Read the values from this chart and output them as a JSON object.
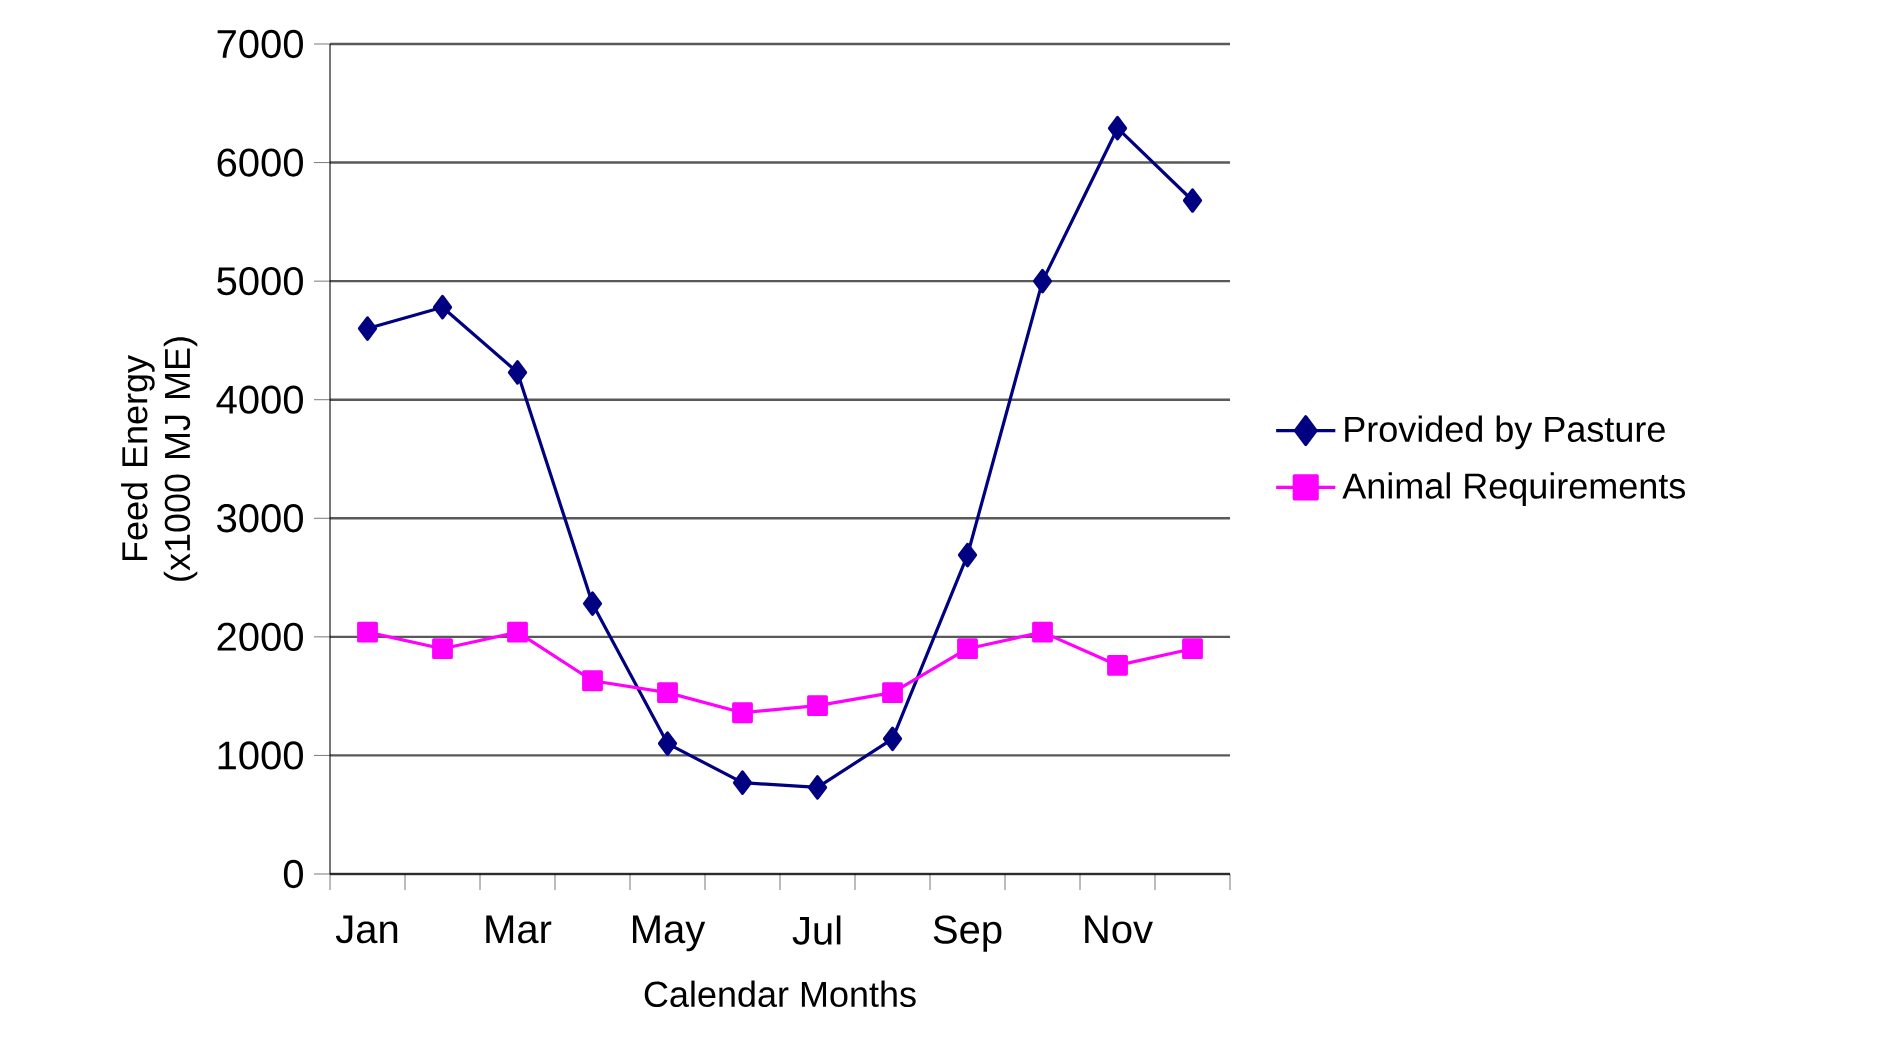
{
  "chart_data": {
    "type": "line",
    "xlabel": "Calendar Months",
    "ylabel": "Feed Energy (x1000 MJ ME)",
    "categories": [
      "Jan",
      null,
      "Mar",
      null,
      "May",
      null,
      "Jul",
      null,
      "Sep",
      null,
      "Nov",
      null
    ],
    "series": [
      {
        "name": "Provided by Pasture",
        "color": "#000080",
        "marker": "diamond",
        "values": [
          4600,
          4780,
          4230,
          2280,
          1100,
          770,
          730,
          1140,
          2690,
          5000,
          6290,
          5680
        ]
      },
      {
        "name": "Animal Requirements",
        "color": "#ff00ff",
        "marker": "square",
        "values": [
          2040,
          1900,
          2040,
          1630,
          1530,
          1360,
          1420,
          1530,
          1900,
          2040,
          1760,
          1900
        ]
      }
    ],
    "ylim": [
      0,
      7000
    ],
    "yticks": [
      0,
      1000,
      2000,
      3000,
      4000,
      5000,
      6000,
      7000
    ],
    "grid": "y",
    "legend": "right"
  }
}
